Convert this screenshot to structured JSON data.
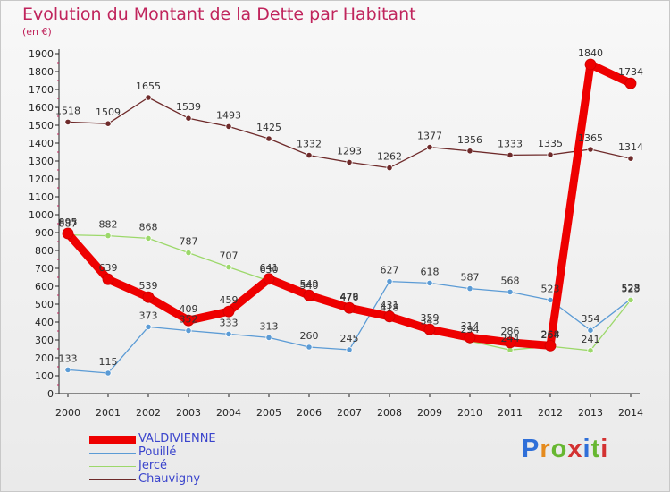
{
  "title": "Evolution du Montant de la Dette par Habitant",
  "subtitle": "(en €)",
  "chart_data": {
    "type": "line",
    "title": "Evolution du Montant de la Dette par Habitant",
    "subtitle": "(en €)",
    "xlabel": "",
    "ylabel": "",
    "x": [
      "2000",
      "2001",
      "2002",
      "2003",
      "2004",
      "2005",
      "2006",
      "2007",
      "2008",
      "2009",
      "2010",
      "2011",
      "2012",
      "2013",
      "2014"
    ],
    "ylim": [
      0,
      1900
    ],
    "yticks": [
      "0",
      "100",
      "200",
      "300",
      "400",
      "500",
      "600",
      "700",
      "800",
      "900",
      "1000",
      "1100",
      "1200",
      "1300",
      "1400",
      "1500",
      "1600",
      "1700",
      "1800",
      "1900"
    ],
    "grid": false,
    "legend_position": "bottom-left",
    "series": [
      {
        "name": "Chauvigny",
        "color": "#6e2a2a",
        "width": 1.3,
        "values": [
          1518,
          1509,
          1655,
          1539,
          1493,
          1425,
          1332,
          1293,
          1262,
          1377,
          1356,
          1333,
          1335,
          1365,
          1314
        ]
      },
      {
        "name": "Pouillé",
        "color": "#5b9bd5",
        "width": 1.3,
        "values": [
          133,
          115,
          373,
          352,
          333,
          313,
          260,
          245,
          627,
          618,
          587,
          568,
          523,
          354,
          528
        ]
      },
      {
        "name": "Jercé",
        "color": "#9cd86a",
        "width": 1.3,
        "values": [
          887,
          882,
          868,
          787,
          707,
          630,
          540,
          476,
          418,
          343,
          294,
          244,
          264,
          241,
          523
        ]
      },
      {
        "name": "VALDIVIENNE",
        "color": "#ee0000",
        "width": 9,
        "values": [
          895,
          639,
          539,
          409,
          459,
          641,
          549,
          479,
          431,
          359,
          314,
          286,
          268,
          1840,
          1734
        ]
      }
    ]
  },
  "legend": [
    {
      "label": "VALDIVIENNE",
      "color": "#ee0000"
    },
    {
      "label": "Pouillé",
      "color": "#5b9bd5"
    },
    {
      "label": "Jercé",
      "color": "#9cd86a"
    },
    {
      "label": "Chauvigny",
      "color": "#6e2a2a"
    }
  ],
  "logo": {
    "parts": [
      "P",
      "r",
      "o",
      "x",
      "i",
      "t",
      "i"
    ]
  }
}
